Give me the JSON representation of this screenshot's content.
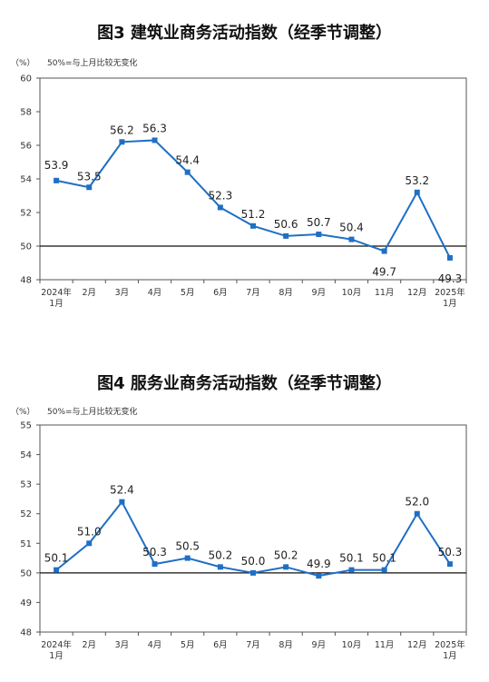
{
  "chart_data": [
    {
      "type": "line",
      "title": "图3  建筑业商务活动指数（经季节调整）",
      "unit": "（%）",
      "note": "50%=与上月比较无变化",
      "categories": [
        "2024年\n1月",
        "2月",
        "3月",
        "4月",
        "5月",
        "6月",
        "7月",
        "8月",
        "9月",
        "10月",
        "11月",
        "12月",
        "2025年\n1月"
      ],
      "values": [
        53.9,
        53.5,
        56.2,
        56.3,
        54.4,
        52.3,
        51.2,
        50.6,
        50.7,
        50.4,
        49.7,
        53.2,
        49.3
      ],
      "value_labels": [
        "53.9",
        "53.5",
        "56.2",
        "56.3",
        "54.4",
        "52.3",
        "51.2",
        "50.6",
        "50.7",
        "50.4",
        "49.7",
        "53.2",
        "49.3"
      ],
      "ylim": [
        48,
        60
      ],
      "yticks": [
        48,
        50,
        52,
        54,
        56,
        58,
        60
      ],
      "reference_line": 50,
      "color": "#1f6fc5"
    },
    {
      "type": "line",
      "title": "图4  服务业商务活动指数（经季节调整）",
      "unit": "（%）",
      "note": "50%=与上月比较无变化",
      "categories": [
        "2024年\n1月",
        "2月",
        "3月",
        "4月",
        "5月",
        "6月",
        "7月",
        "8月",
        "9月",
        "10月",
        "11月",
        "12月",
        "2025年\n1月"
      ],
      "values": [
        50.1,
        51.0,
        52.4,
        50.3,
        50.5,
        50.2,
        50.0,
        50.2,
        49.9,
        50.1,
        50.1,
        52.0,
        50.3
      ],
      "value_labels": [
        "50.1",
        "51.0",
        "52.4",
        "50.3",
        "50.5",
        "50.2",
        "50.0",
        "50.2",
        "49.9",
        "50.1",
        "50.1",
        "52.0",
        "50.3"
      ],
      "ylim": [
        48,
        55
      ],
      "yticks": [
        48,
        49,
        50,
        51,
        52,
        53,
        54,
        55
      ],
      "reference_line": 50,
      "color": "#1f6fc5"
    }
  ]
}
